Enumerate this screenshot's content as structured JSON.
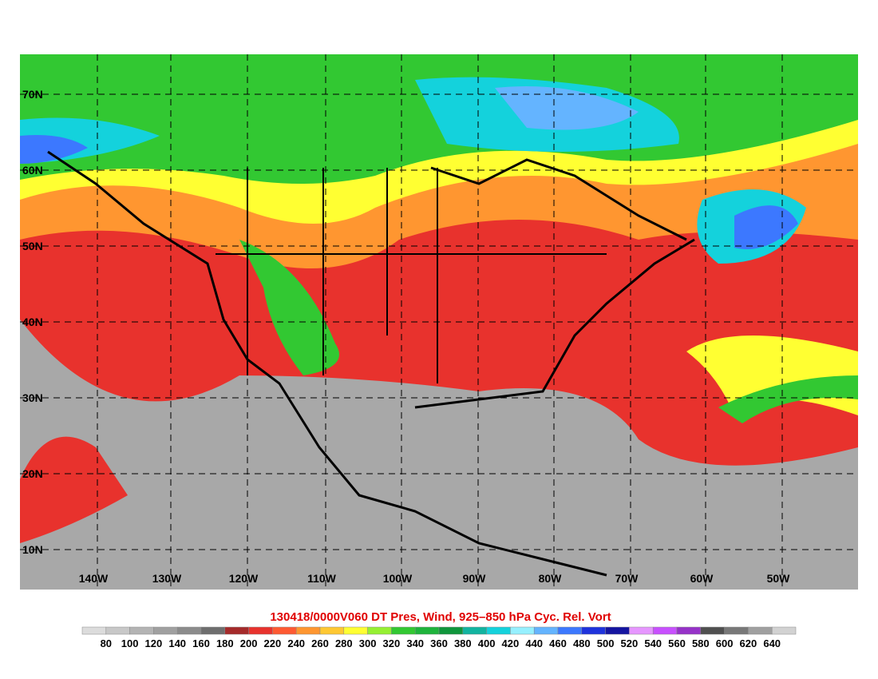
{
  "map": {
    "lat_labels": [
      "70N",
      "60N",
      "50N",
      "40N",
      "30N",
      "20N",
      "10N"
    ],
    "lon_labels": [
      "140W",
      "130W",
      "120W",
      "110W",
      "100W",
      "90W",
      "80W",
      "70W",
      "60W",
      "50W"
    ]
  },
  "title": "130418/0000V060 DT Pres, Wind, 925–850 hPa Cyc. Rel. Vort",
  "colorbar": {
    "labels": [
      80,
      100,
      120,
      140,
      160,
      180,
      200,
      220,
      240,
      260,
      280,
      300,
      320,
      340,
      360,
      380,
      400,
      420,
      440,
      460,
      480,
      500,
      520,
      540,
      560,
      580,
      600,
      620,
      640
    ],
    "colors": [
      "#dcdcdc",
      "#c8c8c8",
      "#b4b4b4",
      "#a0a0a0",
      "#8c8c8c",
      "#6e6e6e",
      "#a52a2a",
      "#e8322d",
      "#ff5a32",
      "#ff9630",
      "#ffc832",
      "#ffff32",
      "#96f032",
      "#32c832",
      "#1eb43c",
      "#0f963c",
      "#12b4a0",
      "#14d2dc",
      "#96f0ff",
      "#64b4ff",
      "#3c78ff",
      "#1e32dc",
      "#1414a0",
      "#e696ff",
      "#c850ff",
      "#9632c8",
      "#505050",
      "#787878",
      "#a0a0a0",
      "#d2d2d2"
    ]
  }
}
